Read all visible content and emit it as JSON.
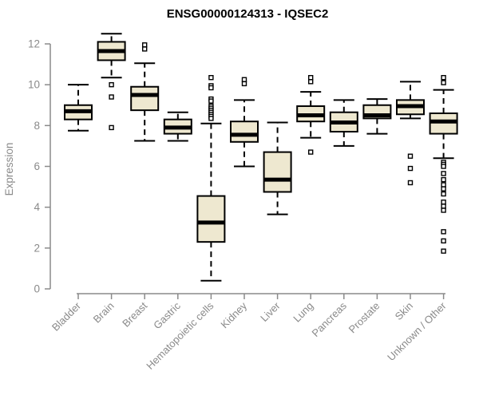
{
  "title": "ENSG00000124313 - IQSEC2",
  "colors": {
    "box_fill": "#EEE8D0",
    "box_stroke": "#000000",
    "median": "#000000",
    "axis": "#8A8A8A",
    "tick_label": "#8A8A8A",
    "title_color": "#000000",
    "background": "#FFFFFF"
  },
  "chart_data": {
    "type": "boxplot",
    "title": "ENSG00000124313 - IQSEC2",
    "xlabel": "",
    "ylabel": "Expression",
    "ylim": [
      0,
      12
    ],
    "yticks": [
      0,
      2,
      4,
      6,
      8,
      10,
      12
    ],
    "grid": false,
    "legend": "none",
    "categories": [
      "Bladder",
      "Brain",
      "Breast",
      "Gastric",
      "Hematopoietic cells",
      "Kidney",
      "Liver",
      "Lung",
      "Pancreas",
      "Prostate",
      "Skin",
      "Unknown / Other"
    ],
    "series": [
      {
        "label": "Bladder",
        "whisker_low": 7.75,
        "q1": 8.3,
        "median": 8.7,
        "q3": 9.0,
        "whisker_high": 10.0,
        "outliers": []
      },
      {
        "label": "Brain",
        "whisker_low": 10.35,
        "q1": 11.2,
        "median": 11.65,
        "q3": 12.1,
        "whisker_high": 12.5,
        "outliers": [
          10.0,
          9.4,
          7.9
        ]
      },
      {
        "label": "Breast",
        "whisker_low": 7.25,
        "q1": 8.75,
        "median": 9.5,
        "q3": 9.9,
        "whisker_high": 11.05,
        "outliers": [
          11.95,
          11.75
        ]
      },
      {
        "label": "Gastric",
        "whisker_low": 7.25,
        "q1": 7.6,
        "median": 7.9,
        "q3": 8.3,
        "whisker_high": 8.65,
        "outliers": []
      },
      {
        "label": "Hematopoietic cells",
        "whisker_low": 0.4,
        "q1": 2.3,
        "median": 3.25,
        "q3": 4.55,
        "whisker_high": 8.1,
        "outliers": [
          10.35,
          9.95,
          9.85,
          9.3,
          9.2,
          8.95,
          8.85,
          8.75,
          8.65,
          8.55,
          8.45,
          8.35
        ]
      },
      {
        "label": "Kidney",
        "whisker_low": 6.0,
        "q1": 7.2,
        "median": 7.55,
        "q3": 8.2,
        "whisker_high": 9.25,
        "outliers": [
          10.25,
          10.05
        ]
      },
      {
        "label": "Liver",
        "whisker_low": 3.65,
        "q1": 4.75,
        "median": 5.35,
        "q3": 6.7,
        "whisker_high": 8.15,
        "outliers": []
      },
      {
        "label": "Lung",
        "whisker_low": 7.4,
        "q1": 8.2,
        "median": 8.5,
        "q3": 8.95,
        "whisker_high": 9.65,
        "outliers": [
          10.35,
          10.15,
          6.7
        ]
      },
      {
        "label": "Pancreas",
        "whisker_low": 7.0,
        "q1": 7.7,
        "median": 8.15,
        "q3": 8.65,
        "whisker_high": 9.25,
        "outliers": []
      },
      {
        "label": "Prostate",
        "whisker_low": 7.6,
        "q1": 8.35,
        "median": 8.5,
        "q3": 9.0,
        "whisker_high": 9.3,
        "outliers": []
      },
      {
        "label": "Skin",
        "whisker_low": 8.35,
        "q1": 8.55,
        "median": 8.95,
        "q3": 9.25,
        "whisker_high": 10.15,
        "outliers": [
          6.5,
          5.9,
          5.2
        ]
      },
      {
        "label": "Unknown / Other",
        "whisker_low": 6.4,
        "q1": 7.6,
        "median": 8.2,
        "q3": 8.6,
        "whisker_high": 9.75,
        "outliers": [
          10.35,
          10.1,
          6.2,
          6.1,
          6.0,
          5.65,
          5.35,
          5.1,
          4.9,
          4.65,
          4.25,
          4.05,
          3.85,
          2.8,
          2.35,
          1.85
        ]
      }
    ]
  }
}
